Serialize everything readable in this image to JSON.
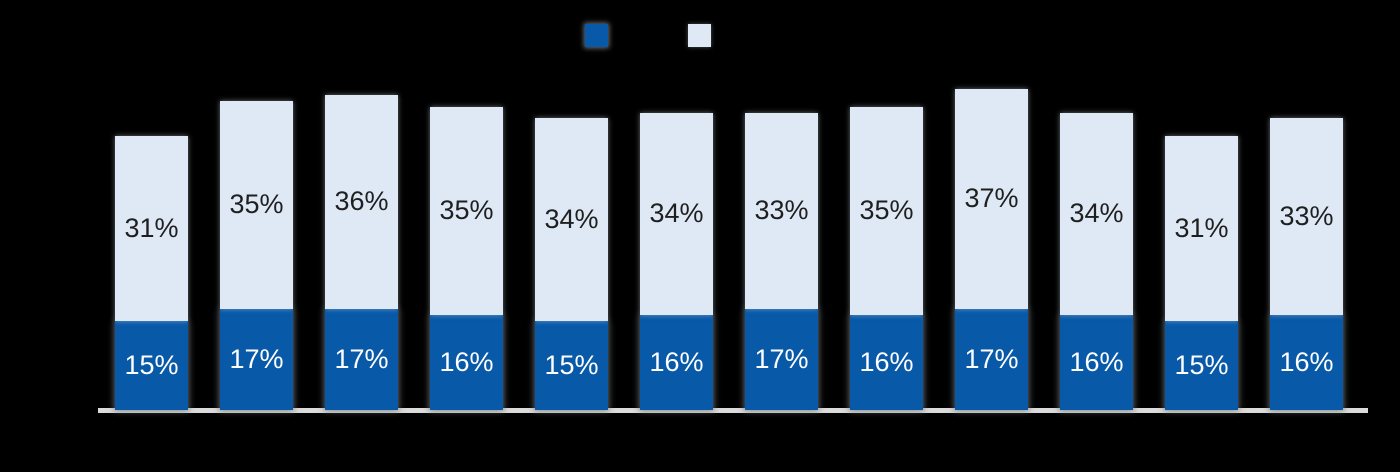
{
  "page": {
    "background_color": "#000000"
  },
  "legend": {
    "position": "top-center",
    "items": [
      {
        "id": "bottom-series",
        "swatch_color": "#0859A8",
        "label_visible": false
      },
      {
        "id": "top-series",
        "swatch_color": "#DFE9F5",
        "label_visible": false
      }
    ]
  },
  "chart_data": {
    "type": "bar",
    "stacked": true,
    "orientation": "vertical",
    "bar_count": 12,
    "series": [
      {
        "id": "bottom-series",
        "position": "bottom",
        "color": "#0859A8",
        "label_color": "#FFFFFF",
        "values": [
          15,
          17,
          17,
          16,
          15,
          16,
          17,
          16,
          17,
          16,
          15,
          16
        ]
      },
      {
        "id": "top-series",
        "position": "top",
        "color": "#DFE9F5",
        "label_color": "#1F1F1F",
        "values": [
          31,
          35,
          36,
          35,
          34,
          34,
          33,
          35,
          37,
          34,
          31,
          33
        ]
      }
    ],
    "value_suffix": "%",
    "data_labels": "inside-center",
    "axis": {
      "baseline_color": "#DBDBDB",
      "gridlines": false,
      "y_axis_visible": false,
      "x_tick_labels_visible": false
    },
    "legend_position": "top-center",
    "title": ""
  }
}
